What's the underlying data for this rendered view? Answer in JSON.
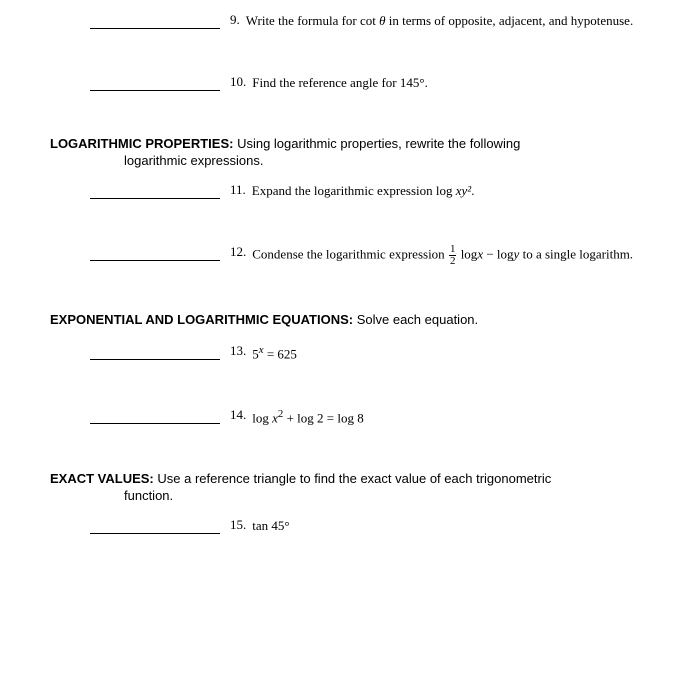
{
  "page": {
    "background_color": "#ffffff",
    "text_color": "#000000",
    "serif_font": "Georgia, Times New Roman, serif",
    "sans_font": "Arial, Helvetica, sans-serif",
    "body_fontsize": 13
  },
  "questions": {
    "q9": {
      "number": "9.",
      "text_a": "Write the formula for cot ",
      "theta": "θ",
      "text_b": " in terms of opposite, adjacent, and hypotenuse."
    },
    "q10": {
      "number": "10.",
      "text": "Find the reference angle for 145°."
    },
    "q11": {
      "number": "11.",
      "text_a": "Expand the logarithmic expression log ",
      "expr": "xy²",
      "text_b": "."
    },
    "q12": {
      "number": "12.",
      "text_a": "Condense the logarithmic expression ",
      "frac_num": "1",
      "frac_den": "2",
      "expr1": " log",
      "var1": "x",
      "minus": " − log",
      "var2": "y",
      "text_b": " to a single logarithm."
    },
    "q13": {
      "number": "13.",
      "text_a": "5",
      "sup": "x",
      "text_b": " = 625"
    },
    "q14": {
      "number": "14.",
      "text_a": "log ",
      "var1": "x",
      "sup": "2",
      "text_b": " + log 2 = log 8"
    },
    "q15": {
      "number": "15.",
      "text": "tan 45°"
    }
  },
  "sections": {
    "log_props": {
      "title": "LOGARITHMIC PROPERTIES: ",
      "desc": "Using logarithmic properties, rewrite the following",
      "sub": "logarithmic expressions."
    },
    "exp_log_eq": {
      "title": "EXPONENTIAL AND LOGARITHMIC EQUATIONS: ",
      "desc": "Solve each equation."
    },
    "exact_vals": {
      "title": "EXACT VALUES: ",
      "desc": "Use a reference triangle to find the exact value of each trigonometric",
      "sub": "function."
    }
  }
}
